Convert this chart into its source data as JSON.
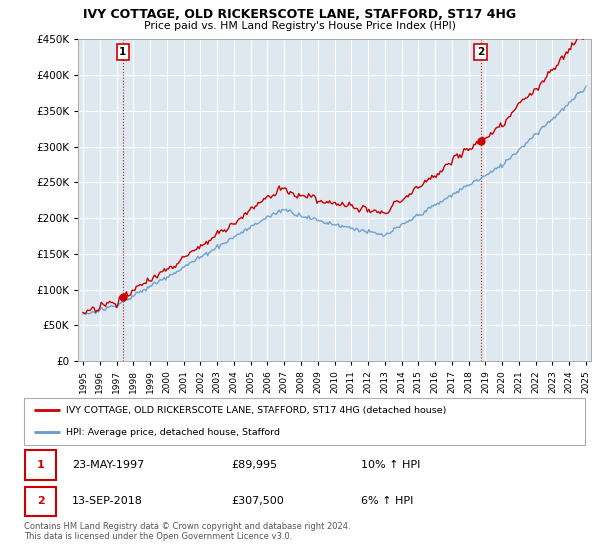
{
  "title": "IVY COTTAGE, OLD RICKERSCOTE LANE, STAFFORD, ST17 4HG",
  "subtitle": "Price paid vs. HM Land Registry's House Price Index (HPI)",
  "legend_label_red": "IVY COTTAGE, OLD RICKERSCOTE LANE, STAFFORD, ST17 4HG (detached house)",
  "legend_label_blue": "HPI: Average price, detached house, Stafford",
  "sale1_date": "23-MAY-1997",
  "sale1_price": "£89,995",
  "sale1_hpi": "10% ↑ HPI",
  "sale2_date": "13-SEP-2018",
  "sale2_price": "£307,500",
  "sale2_hpi": "6% ↑ HPI",
  "footnote": "Contains HM Land Registry data © Crown copyright and database right 2024.\nThis data is licensed under the Open Government Licence v3.0.",
  "ylim": [
    0,
    450000
  ],
  "yticks": [
    0,
    50000,
    100000,
    150000,
    200000,
    250000,
    300000,
    350000,
    400000,
    450000
  ],
  "sale1_year": 1997.38,
  "sale2_year": 2018.71,
  "sale1_price_val": 89995,
  "sale2_price_val": 307500,
  "red_color": "#cc0000",
  "blue_color": "#6699cc",
  "vline_color": "#cc0000",
  "bg_color": "#ffffff",
  "chart_bg_color": "#dde8f0",
  "grid_color": "#ffffff"
}
